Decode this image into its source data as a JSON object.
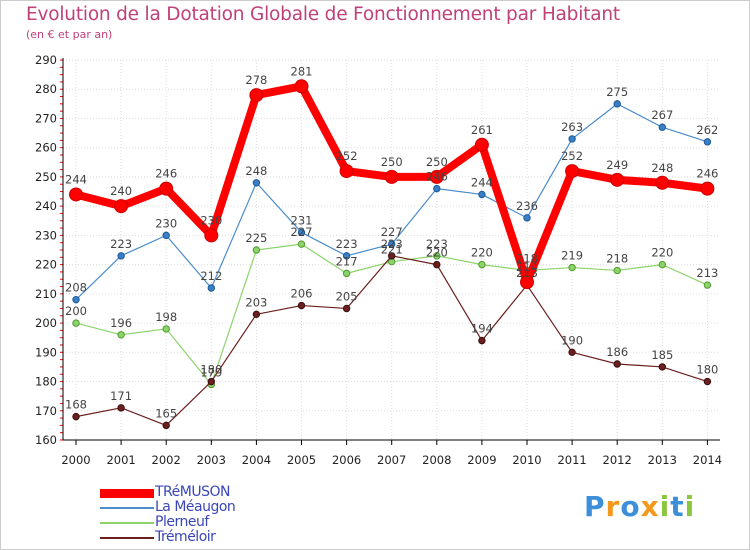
{
  "title": "Evolution de la Dotation Globale de Fonctionnement par Habitant",
  "subtitle": "(en € et par an)",
  "logo": "Proxiti",
  "colors": {
    "title": "#c0407a",
    "axis": "#000000",
    "grid": "#dddddd",
    "background": "#ffffff"
  },
  "chart_data": {
    "type": "line",
    "title": "Evolution de la Dotation Globale de Fonctionnement par Habitant",
    "subtitle": "(en € et par an)",
    "xlabel": "",
    "ylabel": "",
    "x": [
      "2000",
      "2001",
      "2002",
      "2003",
      "2004",
      "2005",
      "2006",
      "2007",
      "2008",
      "2009",
      "2010",
      "2011",
      "2012",
      "2013",
      "2014"
    ],
    "ylim": [
      160,
      290
    ],
    "yticks": [
      160,
      170,
      180,
      190,
      200,
      210,
      220,
      230,
      240,
      250,
      260,
      270,
      280,
      290
    ],
    "grid": true,
    "legend_position": "bottom-left",
    "series": [
      {
        "name": "Trémuson",
        "color": "#ff0000",
        "values": [
          244,
          240,
          246,
          230,
          278,
          281,
          252,
          250,
          250,
          261,
          214,
          252,
          249,
          248,
          246
        ]
      },
      {
        "name": "La Méaugon",
        "color": "#4a8ccc",
        "values": [
          208,
          223,
          230,
          212,
          248,
          231,
          223,
          227,
          246,
          244,
          236,
          263,
          275,
          267,
          262
        ]
      },
      {
        "name": "Plerneuf",
        "color": "#8cd46a",
        "values": [
          200,
          196,
          198,
          179,
          225,
          227,
          217,
          221,
          223,
          220,
          218,
          219,
          218,
          220,
          213
        ]
      },
      {
        "name": "Tréméloir",
        "color": "#6b1f1f",
        "values": [
          168,
          171,
          165,
          180,
          203,
          206,
          205,
          223,
          220,
          194,
          213,
          190,
          186,
          185,
          180
        ]
      }
    ],
    "legend_labels": [
      "TRéMUSON",
      "La Méaugon",
      "Plerneuf",
      "Tréméloir"
    ]
  }
}
